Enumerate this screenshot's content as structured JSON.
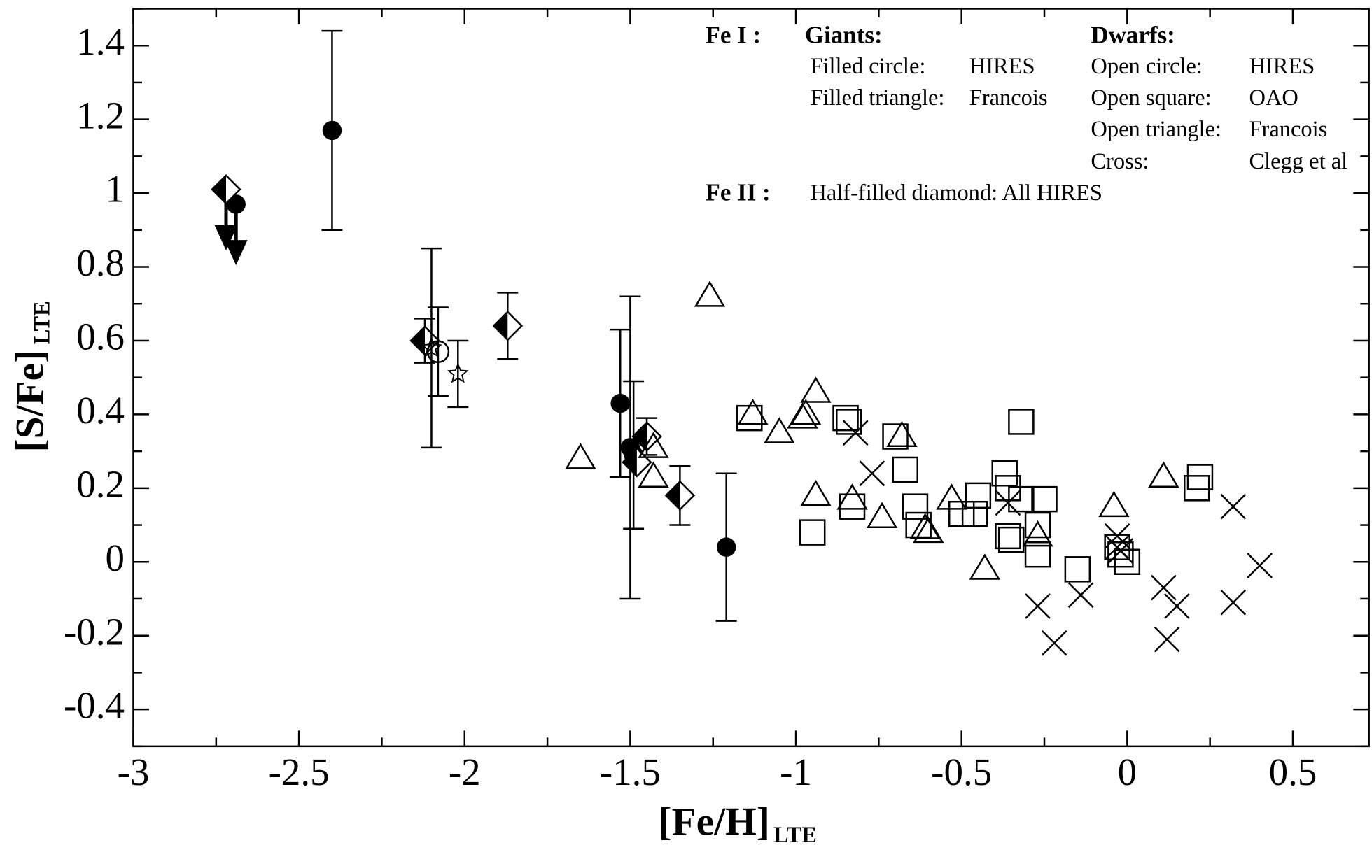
{
  "chart_data": {
    "type": "scatter",
    "x_label": "[Fe/H]",
    "x_label_sub": "LTE",
    "y_label": "[S/Fe]",
    "y_label_sub": "LTE",
    "xlim": [
      -3,
      0.73
    ],
    "ylim": [
      -0.5,
      1.5
    ],
    "xticks": [
      -3,
      -2.5,
      -2,
      -1.5,
      -1,
      -0.5,
      0,
      0.5
    ],
    "x_minor_ticks": [
      -2.75,
      -2.25,
      -1.75,
      -1.25,
      -0.75,
      -0.25,
      0.25
    ],
    "yticks": [
      -0.4,
      -0.2,
      0,
      0.2,
      0.4,
      0.6,
      0.8,
      1,
      1.2,
      1.4
    ],
    "y_minor_ticks": [
      -0.5,
      -0.3,
      -0.1,
      0.1,
      0.3,
      0.5,
      0.7,
      0.9,
      1.1,
      1.3,
      1.5
    ],
    "legend": {
      "fe1": "Fe I :",
      "giants": "Giants:",
      "dwarfs": "Dwarfs:",
      "giant_rows": [
        [
          "Filled circle:",
          "HIRES"
        ],
        [
          "Filled triangle:",
          "Francois"
        ]
      ],
      "dwarf_rows": [
        [
          "Open circle:",
          "HIRES"
        ],
        [
          "Open square:",
          "OAO"
        ],
        [
          "Open triangle:",
          "Francois"
        ],
        [
          "Cross:",
          "Clegg et al"
        ]
      ],
      "fe2": "Fe II :",
      "fe2_text": "Half-filled diamond: All HIRES"
    },
    "series": [
      {
        "marker": "filled-circle",
        "color": "#000000",
        "x": [
          -2.4,
          -2.69,
          -1.53,
          -1.5,
          -1.49,
          -1.21
        ],
        "values": [
          1.17,
          0.97,
          0.43,
          0.31,
          0.29,
          0.04
        ],
        "errors": [
          0.27,
          null,
          0.2,
          0.41,
          0.2,
          0.2
        ],
        "upper_limits": [
          false,
          true,
          false,
          false,
          false,
          false
        ]
      },
      {
        "marker": "half-diamond",
        "color": "#000000",
        "x": [
          -2.72,
          -2.12,
          -1.87,
          -1.45,
          -1.48,
          -1.35
        ],
        "values": [
          1.01,
          0.6,
          0.64,
          0.34,
          0.27,
          0.18
        ],
        "errors": [
          null,
          0.06,
          0.09,
          0.05,
          null,
          0.08
        ],
        "upper_limits": [
          true,
          false,
          false,
          false,
          false,
          false
        ]
      },
      {
        "marker": "open-circle",
        "color": "#000000",
        "x": [
          -2.08
        ],
        "values": [
          0.57
        ],
        "errors": [
          0.12
        ],
        "upper_limits": [
          false
        ]
      },
      {
        "marker": "star",
        "color": "#000000",
        "x": [
          -2.1,
          -2.02
        ],
        "values": [
          0.58,
          0.51
        ],
        "errors": [
          0.27,
          0.09
        ],
        "upper_limits": [
          false,
          false
        ]
      },
      {
        "marker": "open-triangle",
        "color": "#000000",
        "x": [
          -1.26,
          -1.65,
          -1.13,
          -1.05,
          -0.98,
          -0.97,
          -0.94,
          -0.94,
          -0.83,
          -0.68,
          -0.74,
          -0.6,
          -0.61,
          -0.53,
          -0.43,
          -0.27,
          -0.04,
          0.11,
          -1.43,
          -1.43
        ],
        "values": [
          0.72,
          0.28,
          0.4,
          0.35,
          0.39,
          0.4,
          0.46,
          0.18,
          0.17,
          0.34,
          0.12,
          0.08,
          0.09,
          0.17,
          -0.02,
          0.07,
          0.15,
          0.23,
          0.23,
          0.31
        ]
      },
      {
        "marker": "open-square",
        "color": "#000000",
        "x": [
          -1.14,
          -0.85,
          -0.84,
          -0.95,
          -0.83,
          -0.7,
          -0.67,
          -0.64,
          -0.63,
          -0.5,
          -0.46,
          -0.45,
          -0.37,
          -0.36,
          -0.36,
          -0.35,
          -0.32,
          -0.25,
          -0.32,
          -0.27,
          -0.27,
          -0.15,
          -0.03,
          -0.02,
          0.0,
          0.21,
          0.22
        ],
        "values": [
          0.39,
          0.39,
          0.38,
          0.08,
          0.15,
          0.34,
          0.25,
          0.15,
          0.1,
          0.13,
          0.13,
          0.18,
          0.24,
          0.2,
          0.07,
          0.06,
          0.17,
          0.17,
          0.38,
          0.1,
          0.02,
          -0.02,
          0.04,
          0.02,
          0.0,
          0.2,
          0.23
        ]
      },
      {
        "marker": "cross",
        "color": "#000000",
        "x": [
          -0.82,
          -0.77,
          -0.36,
          -0.27,
          -0.22,
          -0.14,
          -0.03,
          -0.03,
          -0.02,
          0.11,
          0.12,
          0.15,
          0.32,
          0.32,
          0.4
        ],
        "values": [
          0.35,
          0.24,
          0.16,
          -0.12,
          -0.22,
          -0.09,
          0.07,
          0.04,
          0.03,
          -0.07,
          -0.21,
          -0.12,
          0.15,
          -0.11,
          -0.01
        ]
      }
    ]
  }
}
